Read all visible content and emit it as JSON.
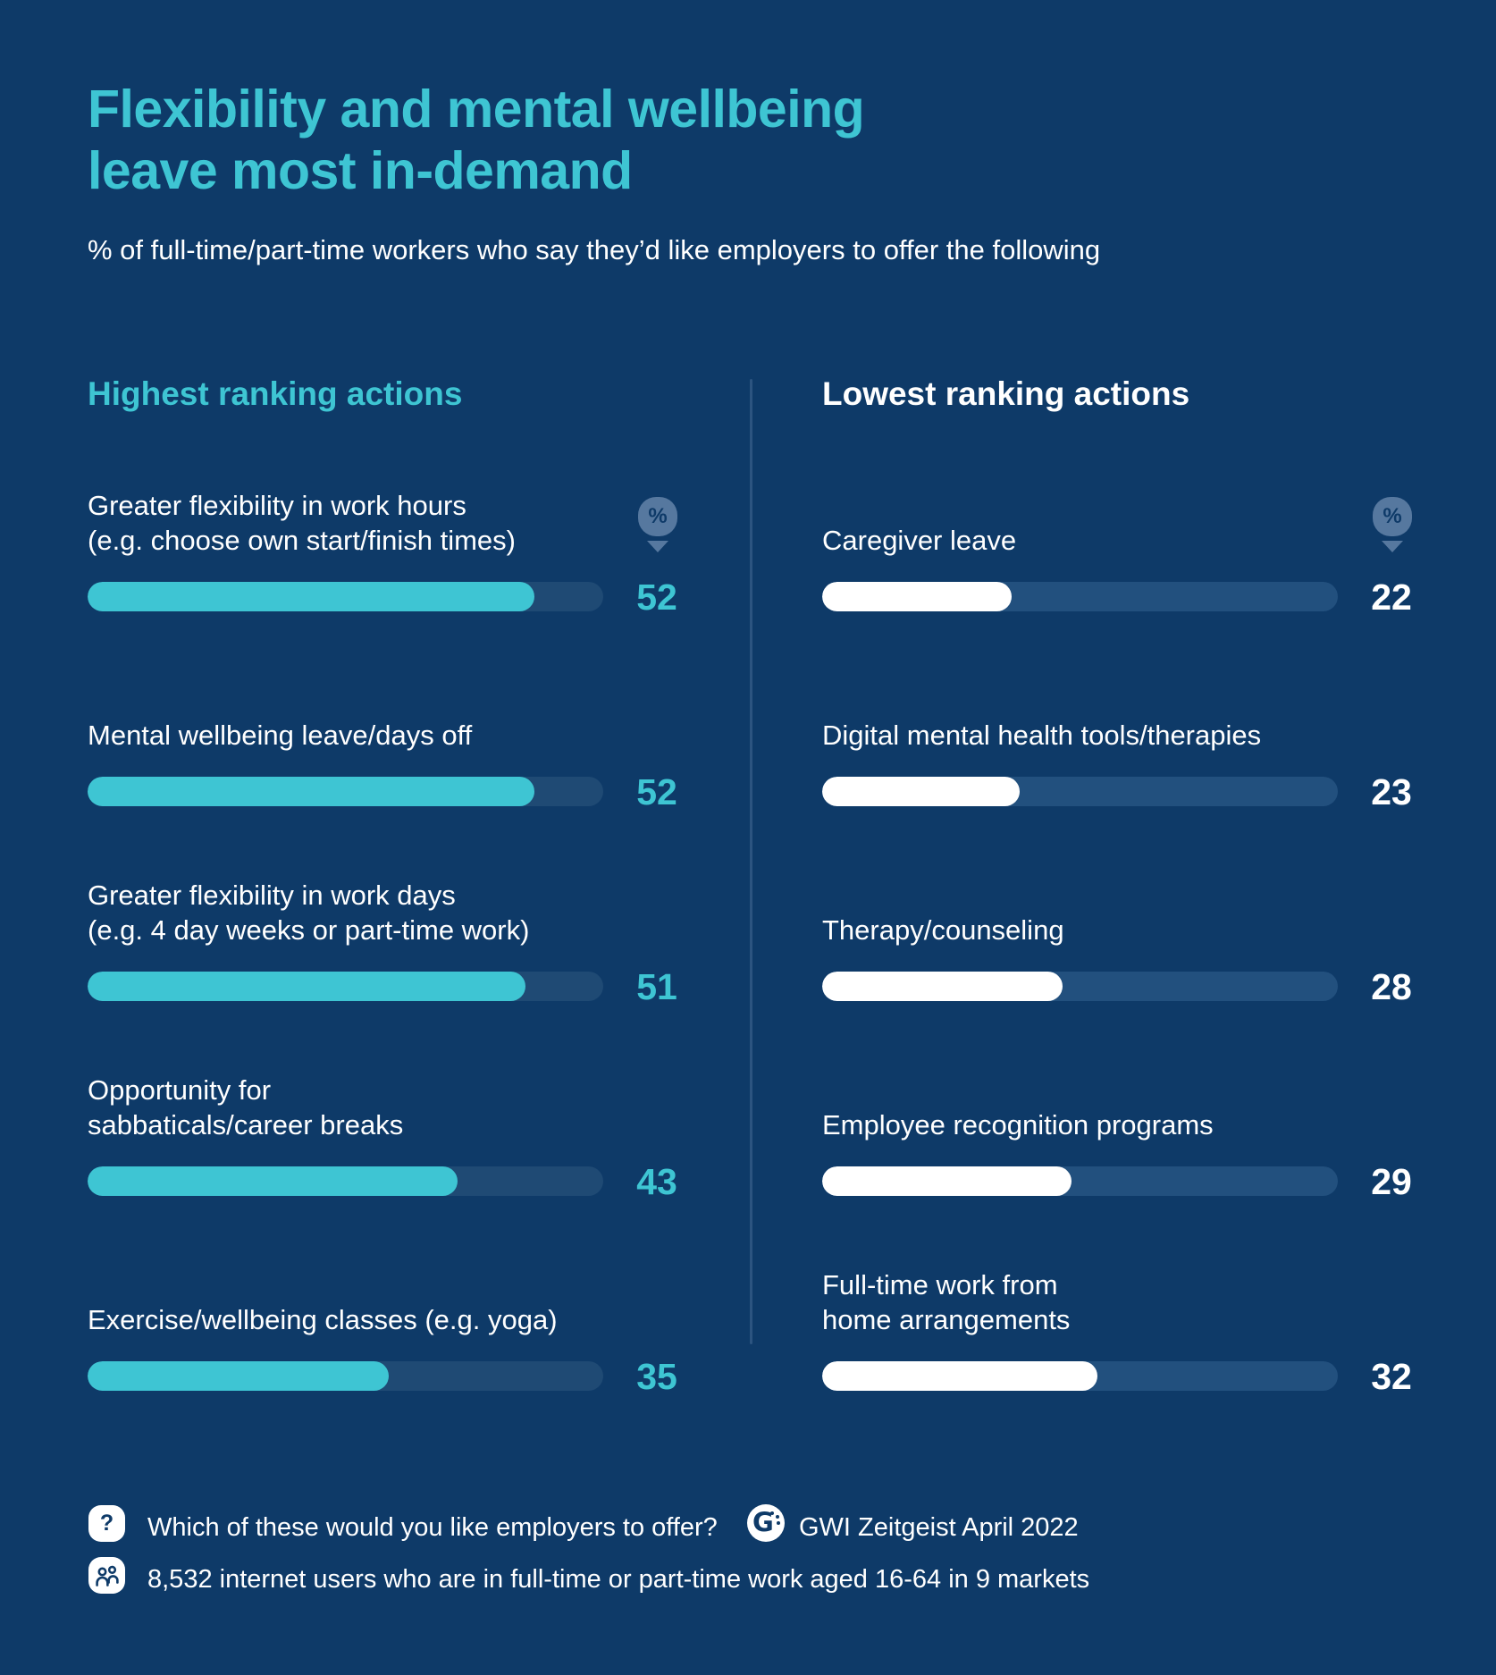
{
  "page": {
    "background_color": "#0E3A68",
    "accent_teal": "#3EC5D3",
    "white": "#FFFFFF",
    "divider_color": "#2C5480",
    "pin_icon_color": "#56789F"
  },
  "title": {
    "line1": "Flexibility and mental wellbeing",
    "line2": "leave most in-demand"
  },
  "subtitle": "% of full-time/part-time workers who say they’d like employers to offer the following",
  "icons": {
    "percent_pin": "%",
    "question_mark": "?",
    "people_icon": "two-people",
    "gwi_logo_letter": "G"
  },
  "chart_data": {
    "type": "bar",
    "orientation": "horizontal",
    "unit": "%",
    "scale_max": 60,
    "grid": false,
    "columns": [
      {
        "heading": "Highest ranking actions",
        "heading_color": "#3EC5D3",
        "bar_color": "#3EC5D3",
        "track_color": "#1F4A74",
        "value_color": "#3EC5D3",
        "items": [
          {
            "label_lines": [
              "Greater flexibility in work hours",
              "(e.g. choose own start/finish times)"
            ],
            "value": 52
          },
          {
            "label_lines": [
              "Mental wellbeing leave/days off"
            ],
            "value": 52
          },
          {
            "label_lines": [
              "Greater flexibility in work days",
              "(e.g. 4 day weeks or part-time work)"
            ],
            "value": 51
          },
          {
            "label_lines": [
              "Opportunity for",
              "sabbaticals/career breaks"
            ],
            "value": 43
          },
          {
            "label_lines": [
              "Exercise/wellbeing classes (e.g. yoga)"
            ],
            "value": 35
          }
        ]
      },
      {
        "heading": "Lowest ranking actions",
        "heading_color": "#FFFFFF",
        "bar_color": "#FFFFFF",
        "track_color": "#22507E",
        "value_color": "#FFFFFF",
        "items": [
          {
            "label_lines": [
              "Caregiver leave"
            ],
            "value": 22
          },
          {
            "label_lines": [
              "Digital mental health tools/therapies"
            ],
            "value": 23
          },
          {
            "label_lines": [
              "Therapy/counseling"
            ],
            "value": 28
          },
          {
            "label_lines": [
              "Employee recognition programs"
            ],
            "value": 29
          },
          {
            "label_lines": [
              "Full-time work from",
              "home arrangements"
            ],
            "value": 32
          }
        ]
      }
    ]
  },
  "footer": {
    "question": "Which of these would you like employers to offer?",
    "source": "GWI Zeitgeist April 2022",
    "sample": "8,532 internet users who are in full-time or part-time work aged 16-64 in 9 markets"
  }
}
